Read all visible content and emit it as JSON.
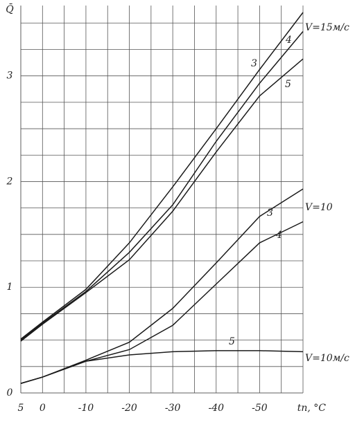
{
  "chart_data": {
    "type": "line",
    "y_label": "Q̄",
    "x_label": "tп, °C",
    "x": [
      5,
      0,
      -10,
      -20,
      -30,
      -40,
      -50,
      -60
    ],
    "series": [
      {
        "color": "#1a1a1a",
        "values": [
          0.51,
          0.67,
          0.98,
          1.42,
          1.95,
          2.5,
          3.06,
          3.6
        ]
      },
      {
        "color": "#1a1a1a",
        "values": [
          0.5,
          0.66,
          0.96,
          1.33,
          1.78,
          2.38,
          2.93,
          3.42
        ]
      },
      {
        "color": "#1a1a1a",
        "values": [
          0.49,
          0.65,
          0.95,
          1.26,
          1.72,
          2.28,
          2.81,
          3.16
        ]
      },
      {
        "color": "#1a1a1a",
        "values": [
          0.09,
          0.15,
          0.31,
          0.48,
          0.8,
          1.23,
          1.67,
          1.93
        ]
      },
      {
        "color": "#1a1a1a",
        "values": [
          0.09,
          0.15,
          0.3,
          0.41,
          0.64,
          1.03,
          1.42,
          1.62
        ]
      },
      {
        "color": "#1a1a1a",
        "values": [
          0.09,
          0.15,
          0.3,
          0.36,
          0.39,
          0.4,
          0.4,
          0.39
        ]
      }
    ],
    "annotations": [
      "3",
      "4",
      "5",
      "V=15м/с",
      "3",
      "4",
      "V=10",
      "5",
      "V=10м/с"
    ],
    "xlim": [
      5,
      -60
    ],
    "ylim": [
      0,
      3.6
    ],
    "xticks": [
      5,
      0,
      -10,
      -20,
      -30,
      -40,
      -50
    ],
    "yticks": [
      0,
      1,
      2,
      3
    ],
    "xgrid": [
      5,
      0,
      -5,
      -10,
      -15,
      -20,
      -25,
      -30,
      -35,
      -40,
      -45,
      -50,
      -55,
      -60
    ],
    "ygrid": [
      0,
      0.25,
      0.5,
      0.75,
      1,
      1.25,
      1.5,
      1.75,
      2,
      2.25,
      2.5,
      2.75,
      3,
      3.25,
      3.5
    ],
    "grid": true
  }
}
